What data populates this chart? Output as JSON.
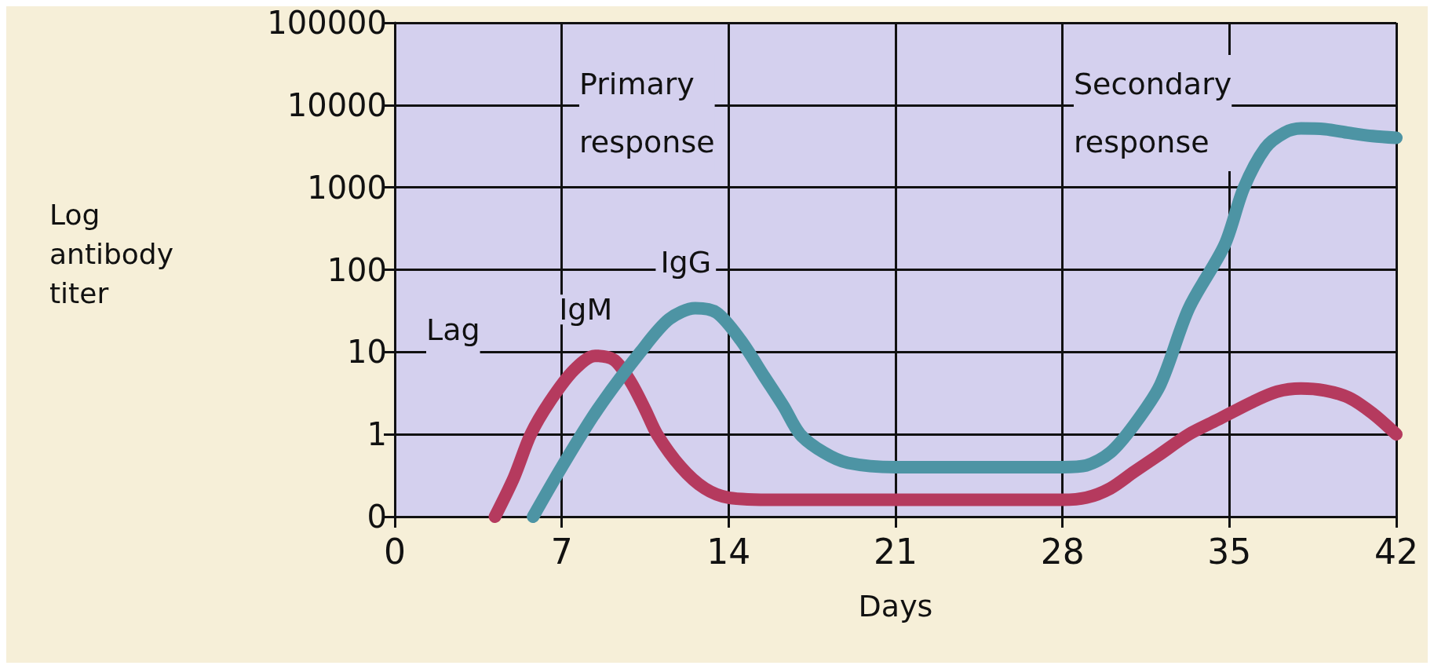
{
  "chart_data": {
    "type": "line",
    "xlabel": "Days",
    "ylabel": "Log antibody titer",
    "series": [
      {
        "name": "IgM",
        "color": "#b53a5e",
        "x": [
          4.2,
          5,
          5.7,
          6.5,
          7.5,
          8.4,
          9.2,
          9.9,
          10.5,
          11,
          12,
          13,
          14,
          16,
          21,
          28,
          29,
          30,
          31,
          32,
          33.3,
          34.5,
          36,
          37,
          38,
          39,
          40,
          41,
          42
        ],
        "values": [
          0.1,
          0.3,
          1,
          2.5,
          6,
          9,
          8,
          4.3,
          2,
          1,
          0.4,
          0.22,
          0.17,
          0.16,
          0.16,
          0.16,
          0.17,
          0.22,
          0.35,
          0.55,
          1,
          1.5,
          2.5,
          3.3,
          3.6,
          3.4,
          2.8,
          1.8,
          1
        ]
      },
      {
        "name": "IgG",
        "color": "#4d94a4",
        "x": [
          5.8,
          7,
          8.5,
          10.3,
          11.5,
          12.6,
          13.5,
          14.5,
          15.5,
          16.3,
          17,
          18,
          19,
          21,
          28,
          29,
          30,
          31,
          32.1,
          33.3,
          34.8,
          35.6,
          36.5,
          37.3,
          38,
          39,
          40,
          41,
          42
        ],
        "values": [
          0.1,
          0.4,
          2,
          10,
          25,
          34,
          30,
          14,
          5,
          2.2,
          1,
          0.6,
          0.45,
          0.4,
          0.4,
          0.42,
          0.6,
          1.3,
          4,
          34,
          200,
          980,
          3000,
          4600,
          5200,
          5100,
          4600,
          4200,
          4000
        ]
      }
    ],
    "xlim": [
      0,
      42
    ],
    "xticks": [
      0,
      7,
      14,
      21,
      28,
      35,
      42
    ],
    "ylim": [
      0.1,
      100000
    ],
    "yticks": [
      {
        "value": 0.1,
        "label": "0"
      },
      1,
      10,
      100,
      1000,
      10000,
      100000
    ],
    "log": "y",
    "grid": true,
    "marker": "none",
    "line_style": "solid",
    "legend": false,
    "annotations": [
      "Lag",
      "Primary response",
      "Secondary response"
    ]
  }
}
